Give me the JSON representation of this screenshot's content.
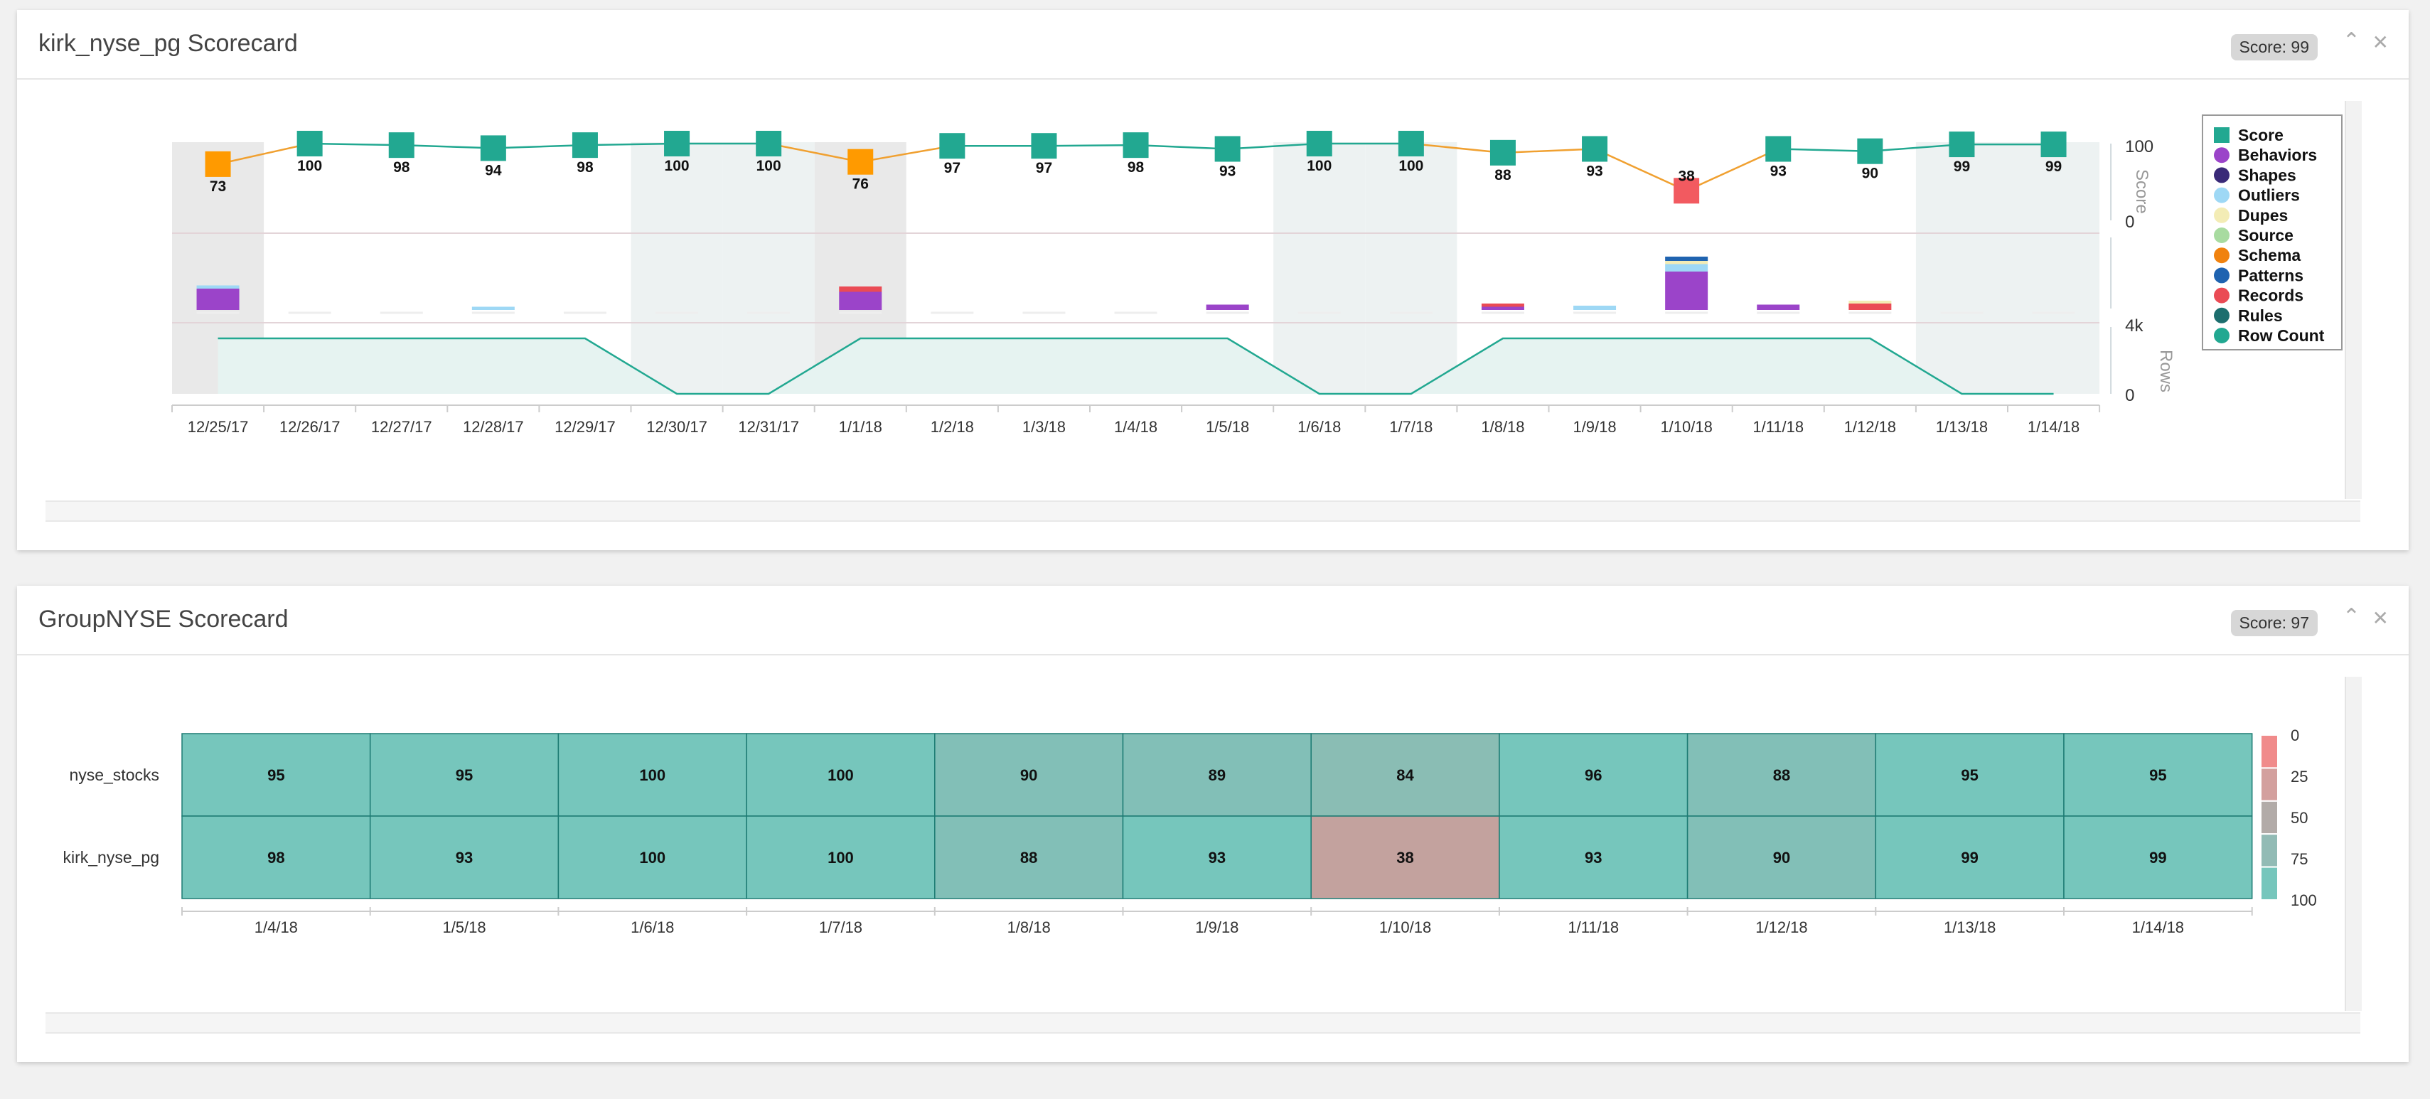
{
  "panel1": {
    "title": "kirk_nyse_pg Scorecard",
    "score_badge": "Score: 99",
    "collapse_icon": "chevron-up-icon",
    "close_icon": "close-icon"
  },
  "panel2": {
    "title": "GroupNYSE Scorecard",
    "score_badge": "Score: 97",
    "collapse_icon": "chevron-up-icon",
    "close_icon": "close-icon"
  },
  "chart_data": [
    {
      "type": "line",
      "categories": [
        "12/25/17",
        "12/26/17",
        "12/27/17",
        "12/28/17",
        "12/29/17",
        "12/30/17",
        "12/31/17",
        "1/1/18",
        "1/2/18",
        "1/3/18",
        "1/4/18",
        "1/5/18",
        "1/6/18",
        "1/7/18",
        "1/8/18",
        "1/9/18",
        "1/10/18",
        "1/11/18",
        "1/12/18",
        "1/13/18",
        "1/14/18"
      ],
      "score": [
        73,
        100,
        98,
        94,
        98,
        100,
        100,
        76,
        97,
        97,
        98,
        93,
        100,
        100,
        88,
        93,
        38,
        93,
        90,
        99,
        99
      ],
      "score_ticks": [
        "100",
        "0"
      ],
      "score_axis_label": "Score",
      "rows_ticks": [
        "4k",
        "0"
      ],
      "rows_axis_label": "Rows",
      "row_count_levels": [
        1,
        1,
        1,
        1,
        1,
        0,
        0,
        1,
        1,
        1,
        1,
        1,
        0,
        0,
        1,
        1,
        1,
        1,
        1,
        0,
        0
      ],
      "shaded_columns": [
        0,
        5,
        6,
        7,
        12,
        13,
        19,
        20
      ],
      "grey_columns": [
        0,
        7
      ],
      "findings": [
        {
          "index": 0,
          "segments": [
            {
              "type": "Behaviors",
              "value": 1.0
            },
            {
              "type": "Outliers",
              "value": 0.15
            }
          ]
        },
        {
          "index": 3,
          "segments": [
            {
              "type": "Outliers",
              "value": 0.15
            }
          ]
        },
        {
          "index": 7,
          "segments": [
            {
              "type": "Behaviors",
              "value": 0.85
            },
            {
              "type": "Records",
              "value": 0.25
            }
          ]
        },
        {
          "index": 11,
          "segments": [
            {
              "type": "Behaviors",
              "value": 0.25
            }
          ]
        },
        {
          "index": 14,
          "segments": [
            {
              "type": "Behaviors",
              "value": 0.15
            },
            {
              "type": "Records",
              "value": 0.15
            }
          ]
        },
        {
          "index": 15,
          "segments": [
            {
              "type": "Outliers",
              "value": 0.2
            }
          ]
        },
        {
          "index": 16,
          "segments": [
            {
              "type": "Behaviors",
              "value": 1.8
            },
            {
              "type": "Outliers",
              "value": 0.35
            },
            {
              "type": "Dupes",
              "value": 0.15
            },
            {
              "type": "Patterns",
              "value": 0.2
            }
          ]
        },
        {
          "index": 17,
          "segments": [
            {
              "type": "Behaviors",
              "value": 0.25
            }
          ]
        },
        {
          "index": 18,
          "segments": [
            {
              "type": "Records",
              "value": 0.3
            },
            {
              "type": "Dupes",
              "value": 0.1
            }
          ]
        }
      ],
      "legend": [
        {
          "name": "Score",
          "color": "#22a891",
          "shape": "square"
        },
        {
          "name": "Behaviors",
          "color": "#9b44c9",
          "shape": "circle"
        },
        {
          "name": "Shapes",
          "color": "#3a2a78",
          "shape": "circle"
        },
        {
          "name": "Outliers",
          "color": "#9ed8f5",
          "shape": "circle"
        },
        {
          "name": "Dupes",
          "color": "#f3ecb5",
          "shape": "circle"
        },
        {
          "name": "Source",
          "color": "#a8dba0",
          "shape": "circle"
        },
        {
          "name": "Schema",
          "color": "#f0820f",
          "shape": "circle"
        },
        {
          "name": "Patterns",
          "color": "#1f63b0",
          "shape": "circle"
        },
        {
          "name": "Records",
          "color": "#ea4b55",
          "shape": "circle"
        },
        {
          "name": "Rules",
          "color": "#1d6e6e",
          "shape": "circle"
        },
        {
          "name": "Row Count",
          "color": "#22a891",
          "shape": "circle"
        }
      ]
    },
    {
      "type": "heatmap",
      "rows": [
        "nyse_stocks",
        "kirk_nyse_pg"
      ],
      "columns": [
        "1/4/18",
        "1/5/18",
        "1/6/18",
        "1/7/18",
        "1/8/18",
        "1/9/18",
        "1/10/18",
        "1/11/18",
        "1/12/18",
        "1/13/18",
        "1/14/18"
      ],
      "values": [
        [
          95,
          95,
          100,
          100,
          90,
          89,
          84,
          96,
          88,
          95,
          95
        ],
        [
          98,
          93,
          100,
          100,
          88,
          93,
          38,
          93,
          90,
          99,
          99
        ]
      ],
      "scale_ticks": [
        "0",
        "25",
        "50",
        "75",
        "100"
      ]
    }
  ]
}
